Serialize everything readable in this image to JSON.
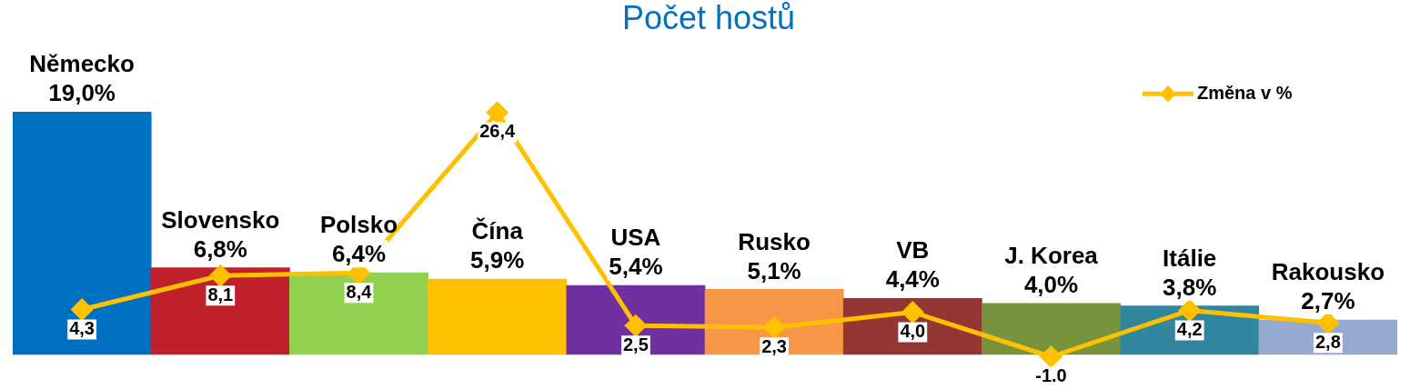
{
  "chart_data": {
    "type": "bar",
    "title": "Počet hostů",
    "categories": [
      "Německo",
      "Slovensko",
      "Polsko",
      "Čína",
      "USA",
      "Rusko",
      "VB",
      "J. Korea",
      "Itálie",
      "Rakousko"
    ],
    "series": [
      {
        "values": [
          19.0,
          6.8,
          6.4,
          5.9,
          5.4,
          5.1,
          4.4,
          4.0,
          3.8,
          2.7
        ],
        "colors": [
          "#0070c0",
          "#c0202a",
          "#92d050",
          "#ffc000",
          "#7030a0",
          "#f79646",
          "#943634",
          "#77933c",
          "#31859c",
          "#95a9d1"
        ],
        "value_labels": [
          "19,0%",
          "6,8%",
          "6,4%",
          "5,9%",
          "5,4%",
          "5,1%",
          "4,4%",
          "4,0%",
          "3,8%",
          "2,7%"
        ]
      },
      {
        "type": "line",
        "name": "Změna v %",
        "color": "#ffc000",
        "axis": "y2",
        "marker": "diamond",
        "values": [
          4.3,
          8.1,
          8.4,
          26.4,
          2.5,
          2.3,
          4.0,
          -1.0,
          4.2,
          2.8
        ],
        "value_labels": [
          "4,3",
          "8,1",
          "8,4",
          "26,4",
          "2,5",
          "2,3",
          "4,0",
          "-1.0",
          "4,2",
          "2,8"
        ]
      }
    ],
    "legend": "top right"
  }
}
